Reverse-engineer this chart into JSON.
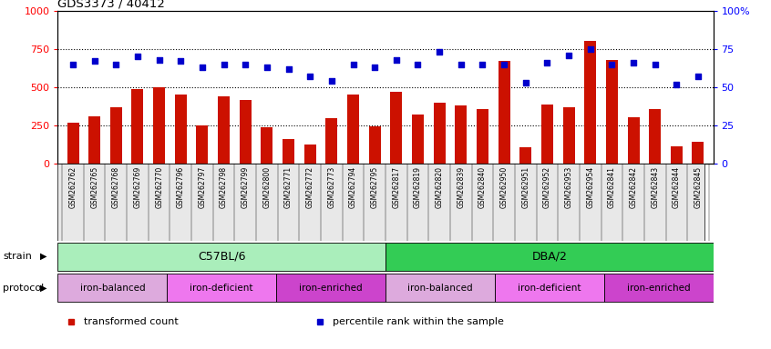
{
  "title": "GDS3373 / 40412",
  "samples": [
    "GSM262762",
    "GSM262765",
    "GSM262768",
    "GSM262769",
    "GSM262770",
    "GSM262796",
    "GSM262797",
    "GSM262798",
    "GSM262799",
    "GSM262800",
    "GSM262771",
    "GSM262772",
    "GSM262773",
    "GSM262794",
    "GSM262795",
    "GSM262817",
    "GSM262819",
    "GSM262820",
    "GSM262839",
    "GSM262840",
    "GSM262950",
    "GSM262951",
    "GSM262952",
    "GSM262953",
    "GSM262954",
    "GSM262841",
    "GSM262842",
    "GSM262843",
    "GSM262844",
    "GSM262845"
  ],
  "transformed_count": [
    270,
    310,
    370,
    490,
    500,
    455,
    250,
    440,
    415,
    240,
    160,
    125,
    300,
    450,
    245,
    470,
    320,
    400,
    380,
    355,
    670,
    110,
    390,
    370,
    800,
    680,
    305,
    360,
    115,
    145
  ],
  "percentile_rank": [
    65,
    67,
    65,
    70,
    68,
    67,
    63,
    65,
    65,
    63,
    62,
    57,
    54,
    65,
    63,
    68,
    65,
    73,
    65,
    65,
    65,
    53,
    66,
    71,
    75,
    65,
    66,
    65,
    52,
    57
  ],
  "strain_groups": [
    {
      "label": "C57BL/6",
      "start": 0,
      "end": 15,
      "color": "#aaeebb"
    },
    {
      "label": "DBA/2",
      "start": 15,
      "end": 30,
      "color": "#33cc55"
    }
  ],
  "protocol_groups": [
    {
      "label": "iron-balanced",
      "start": 0,
      "end": 5,
      "color": "#ddaadd"
    },
    {
      "label": "iron-deficient",
      "start": 5,
      "end": 10,
      "color": "#ee77ee"
    },
    {
      "label": "iron-enriched",
      "start": 10,
      "end": 15,
      "color": "#cc44cc"
    },
    {
      "label": "iron-balanced",
      "start": 15,
      "end": 20,
      "color": "#ddaadd"
    },
    {
      "label": "iron-deficient",
      "start": 20,
      "end": 25,
      "color": "#ee77ee"
    },
    {
      "label": "iron-enriched",
      "start": 25,
      "end": 30,
      "color": "#cc44cc"
    }
  ],
  "bar_color": "#cc1100",
  "dot_color": "#0000cc",
  "left_ylim": [
    0,
    1000
  ],
  "right_ylim": [
    0,
    100
  ],
  "left_yticks": [
    0,
    250,
    500,
    750,
    1000
  ],
  "right_yticks": [
    0,
    25,
    50,
    75,
    100
  ],
  "right_yticklabels": [
    "0",
    "25",
    "50",
    "75",
    "100%"
  ],
  "grid_values": [
    250,
    500,
    750
  ],
  "legend_items": [
    {
      "label": "transformed count",
      "color": "#cc1100"
    },
    {
      "label": "percentile rank within the sample",
      "color": "#0000cc"
    }
  ]
}
